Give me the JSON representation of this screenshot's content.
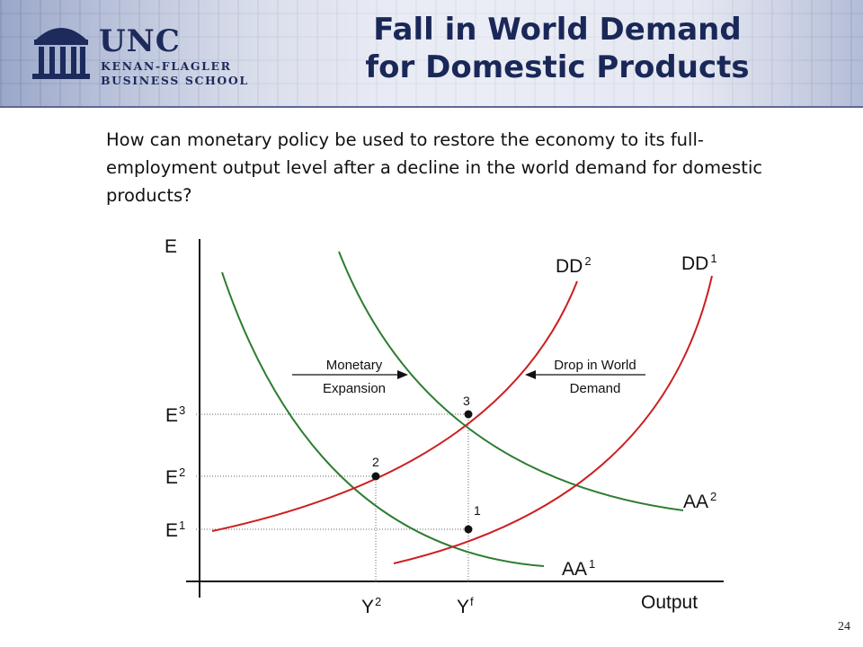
{
  "header": {
    "logo_main": "UNC",
    "logo_line1": "KENAN-FLAGLER",
    "logo_line2": "BUSINESS SCHOOL",
    "title_line1": "Fall in World Demand",
    "title_line2": "for Domestic Products"
  },
  "question": "How can monetary policy be used to restore the economy to its full-employment output level after a decline in the world demand for domestic products?",
  "diagram": {
    "y_axis_label": "E",
    "x_axis_label": "Output",
    "curves": {
      "dd1": {
        "name": "DD",
        "sup": "1"
      },
      "dd2": {
        "name": "DD",
        "sup": "2"
      },
      "aa1": {
        "name": "AA",
        "sup": "1"
      },
      "aa2": {
        "name": "AA",
        "sup": "2"
      }
    },
    "e_levels": {
      "e1": {
        "name": "E",
        "sup": "1"
      },
      "e2": {
        "name": "E",
        "sup": "2"
      },
      "e3": {
        "name": "E",
        "sup": "3"
      }
    },
    "y_levels": {
      "y2": {
        "name": "Y",
        "sup": "2"
      },
      "yf": {
        "name": "Y",
        "sup": "f"
      }
    },
    "points": [
      "1",
      "2",
      "3"
    ],
    "arrows": {
      "monetary": [
        "Monetary",
        "Expansion"
      ],
      "world": [
        "Drop in World",
        "Demand"
      ]
    },
    "colors": {
      "dd": "#cc1f1f",
      "aa": "#2e7d32",
      "guide": "#666666"
    }
  },
  "page_number": "24"
}
